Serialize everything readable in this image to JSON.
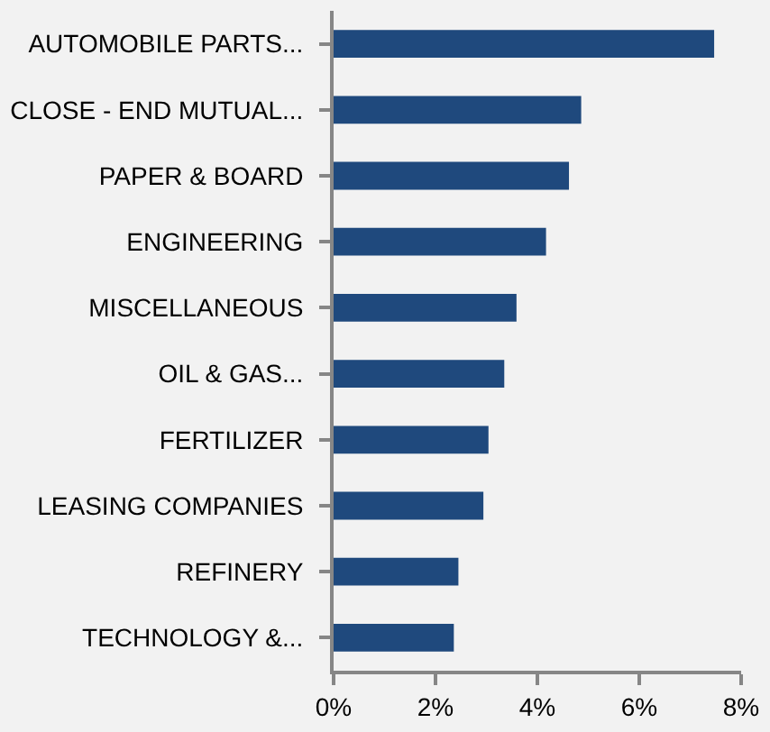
{
  "chart_data": {
    "type": "bar",
    "orientation": "horizontal",
    "categories": [
      "AUTOMOBILE PARTS...",
      "CLOSE - END MUTUAL...",
      "PAPER & BOARD",
      "ENGINEERING",
      "MISCELLANEOUS",
      "OIL & GAS...",
      "FERTILIZER",
      "LEASING COMPANIES",
      "REFINERY",
      "TECHNOLOGY &..."
    ],
    "values": [
      7.47,
      4.86,
      4.62,
      4.17,
      3.59,
      3.35,
      3.04,
      2.94,
      2.45,
      2.36
    ],
    "color": "#1f497d",
    "xlim": [
      0,
      8
    ],
    "xticks": [
      {
        "value": 0,
        "label": "0%"
      },
      {
        "value": 2,
        "label": "2%"
      },
      {
        "value": 4,
        "label": "4%"
      },
      {
        "value": 6,
        "label": "6%"
      },
      {
        "value": 8,
        "label": "8%"
      }
    ],
    "grid": false,
    "legend": false
  }
}
